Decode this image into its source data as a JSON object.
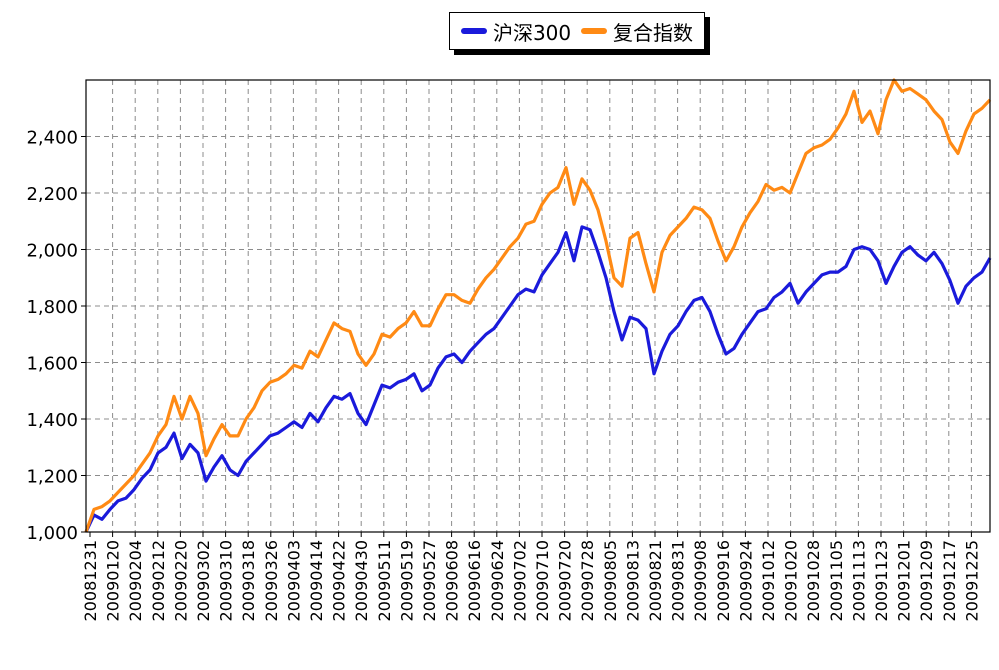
{
  "chart_data": {
    "type": "line",
    "title": "",
    "xlabel": "",
    "ylabel": "",
    "ylim": [
      1000,
      2600
    ],
    "yticks": [
      1000,
      1200,
      1400,
      1600,
      1800,
      2000,
      2200,
      2400
    ],
    "ytick_labels": [
      "1,000",
      "1,200",
      "1,400",
      "1,600",
      "1,800",
      "2,000",
      "2,200",
      "2,400"
    ],
    "xtick_labels": [
      "20081231",
      "20090120",
      "20090204",
      "20090212",
      "20090220",
      "20090302",
      "20090310",
      "20090318",
      "20090326",
      "20090403",
      "20090414",
      "20090422",
      "20090430",
      "20090511",
      "20090519",
      "20090527",
      "20090608",
      "20090616",
      "20090624",
      "20090702",
      "20090710",
      "20090720",
      "20090728",
      "20090805",
      "20090813",
      "20090821",
      "20090831",
      "20090908",
      "20090916",
      "20090924",
      "20091012",
      "20091020",
      "20091028",
      "20091105",
      "20091113",
      "20091123",
      "20091201",
      "20091209",
      "20091217",
      "20091225"
    ],
    "grid": true,
    "legend_position": "top-center",
    "series": [
      {
        "name": "沪深300",
        "color": "#1a1adb",
        "values": [
          1000,
          1060,
          1045,
          1080,
          1110,
          1120,
          1150,
          1190,
          1220,
          1280,
          1300,
          1350,
          1260,
          1310,
          1280,
          1180,
          1230,
          1270,
          1220,
          1200,
          1250,
          1280,
          1310,
          1340,
          1350,
          1370,
          1390,
          1370,
          1420,
          1390,
          1440,
          1480,
          1470,
          1490,
          1420,
          1380,
          1450,
          1520,
          1510,
          1530,
          1540,
          1560,
          1500,
          1520,
          1580,
          1620,
          1630,
          1600,
          1640,
          1670,
          1700,
          1720,
          1760,
          1800,
          1840,
          1860,
          1850,
          1910,
          1950,
          1990,
          2060,
          1960,
          2080,
          2070,
          1990,
          1900,
          1780,
          1680,
          1760,
          1750,
          1720,
          1560,
          1640,
          1700,
          1730,
          1780,
          1820,
          1830,
          1780,
          1700,
          1630,
          1650,
          1700,
          1740,
          1780,
          1790,
          1830,
          1850,
          1880,
          1810,
          1850,
          1880,
          1910,
          1920,
          1920,
          1940,
          2000,
          2010,
          2000,
          1960,
          1880,
          1940,
          1990,
          2010,
          1980,
          1960,
          1990,
          1950,
          1890,
          1810,
          1870,
          1900,
          1920,
          1970
        ]
      },
      {
        "name": "复合指数",
        "color": "#ff8a14",
        "values": [
          1000,
          1080,
          1090,
          1110,
          1140,
          1170,
          1200,
          1240,
          1280,
          1340,
          1380,
          1480,
          1400,
          1480,
          1420,
          1270,
          1330,
          1380,
          1340,
          1340,
          1400,
          1440,
          1500,
          1530,
          1540,
          1560,
          1590,
          1580,
          1640,
          1620,
          1680,
          1740,
          1720,
          1710,
          1630,
          1590,
          1630,
          1700,
          1690,
          1720,
          1740,
          1780,
          1730,
          1730,
          1790,
          1840,
          1840,
          1820,
          1810,
          1860,
          1900,
          1930,
          1970,
          2010,
          2040,
          2090,
          2100,
          2160,
          2200,
          2220,
          2290,
          2160,
          2250,
          2210,
          2140,
          2030,
          1900,
          1870,
          2040,
          2060,
          1950,
          1850,
          1990,
          2050,
          2080,
          2110,
          2150,
          2140,
          2110,
          2030,
          1960,
          2010,
          2080,
          2130,
          2170,
          2230,
          2210,
          2220,
          2200,
          2270,
          2340,
          2360,
          2370,
          2390,
          2430,
          2480,
          2560,
          2450,
          2490,
          2410,
          2530,
          2600,
          2560,
          2570,
          2550,
          2530,
          2490,
          2460,
          2380,
          2340,
          2420,
          2480,
          2500,
          2530
        ]
      }
    ]
  }
}
